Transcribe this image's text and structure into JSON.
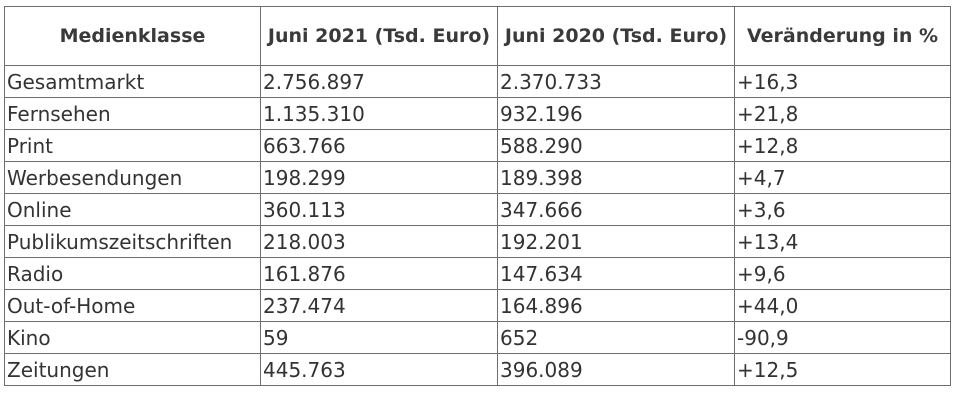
{
  "table": {
    "headers": [
      "Medienklasse",
      "Juni 2021 (Tsd. Euro)",
      "Juni 2020 (Tsd. Euro)",
      "Veränderung in %"
    ],
    "rows": [
      [
        "Gesamtmarkt",
        "2.756.897",
        "2.370.733",
        "+16,3"
      ],
      [
        "Fernsehen",
        "1.135.310",
        "932.196",
        "+21,8"
      ],
      [
        "Print",
        "663.766",
        "588.290",
        "+12,8"
      ],
      [
        "Werbesendungen",
        "198.299",
        "189.398",
        "+4,7"
      ],
      [
        "Online",
        "360.113",
        "347.666",
        "+3,6"
      ],
      [
        "Publikumszeitschriften",
        "218.003",
        "192.201",
        "+13,4"
      ],
      [
        "Radio",
        "161.876",
        "147.634",
        "+9,6"
      ],
      [
        "Out-of-Home",
        "237.474",
        "164.896",
        "+44,0"
      ],
      [
        "Kino",
        "59",
        "652",
        "-90,9"
      ],
      [
        "Zeitungen",
        "445.763",
        "396.089",
        "+12,5"
      ]
    ]
  }
}
